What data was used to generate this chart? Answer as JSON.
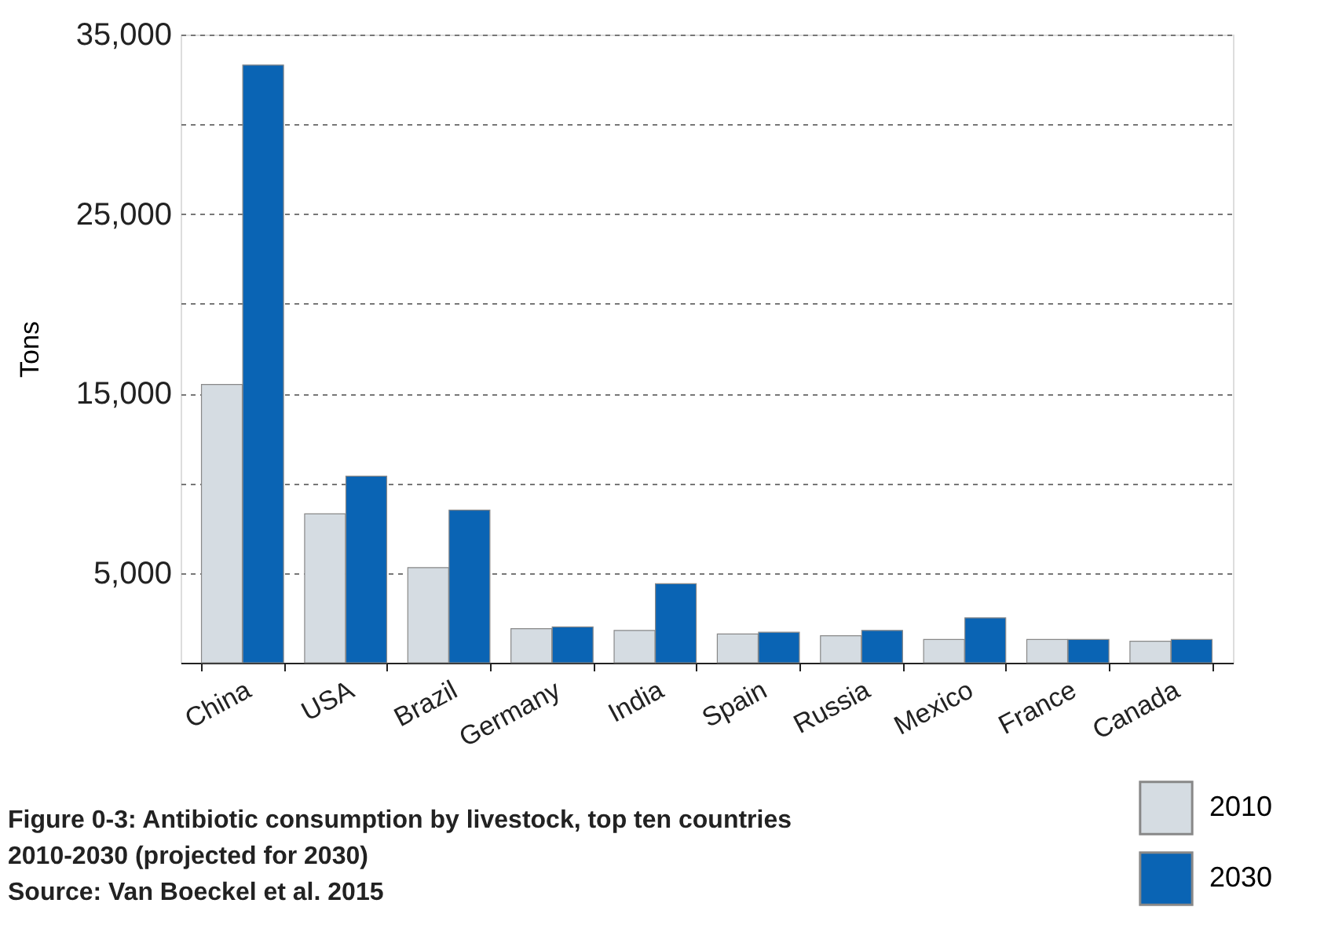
{
  "chart_data": {
    "type": "bar",
    "title": "Figure 0-3: Antibiotic consumption by livestock, top ten countries 2010-2030 (projected for 2030)",
    "annotations": [
      "Source: Van Boeckel et al. 2015"
    ],
    "ylabel": "Tons",
    "categories": [
      "China",
      "USA",
      "Brazil",
      "Germany",
      "India",
      "Spain",
      "Russia",
      "Mexico",
      "France",
      "Canada"
    ],
    "series": [
      {
        "name": "2010",
        "color": "#d5dce2",
        "values": [
          15500,
          8300,
          5300,
          1900,
          1800,
          1600,
          1500,
          1300,
          1300,
          1200
        ]
      },
      {
        "name": "2030",
        "color": "#0a64b4",
        "values": [
          33300,
          10400,
          8500,
          2000,
          4400,
          1700,
          1800,
          2500,
          1300,
          1300
        ]
      }
    ],
    "ylim": [
      0,
      35000
    ],
    "yticks": [
      {
        "value": 0,
        "label": null
      },
      {
        "value": 5000,
        "label": "5,000"
      },
      {
        "value": 10000,
        "label": null
      },
      {
        "value": 15000,
        "label": "15,000"
      },
      {
        "value": 20000,
        "label": null
      },
      {
        "value": 25000,
        "label": "25,000"
      },
      {
        "value": 30000,
        "label": null
      },
      {
        "value": 35000,
        "label": "35,000"
      }
    ],
    "grid": "y",
    "legend": "bottom right"
  }
}
